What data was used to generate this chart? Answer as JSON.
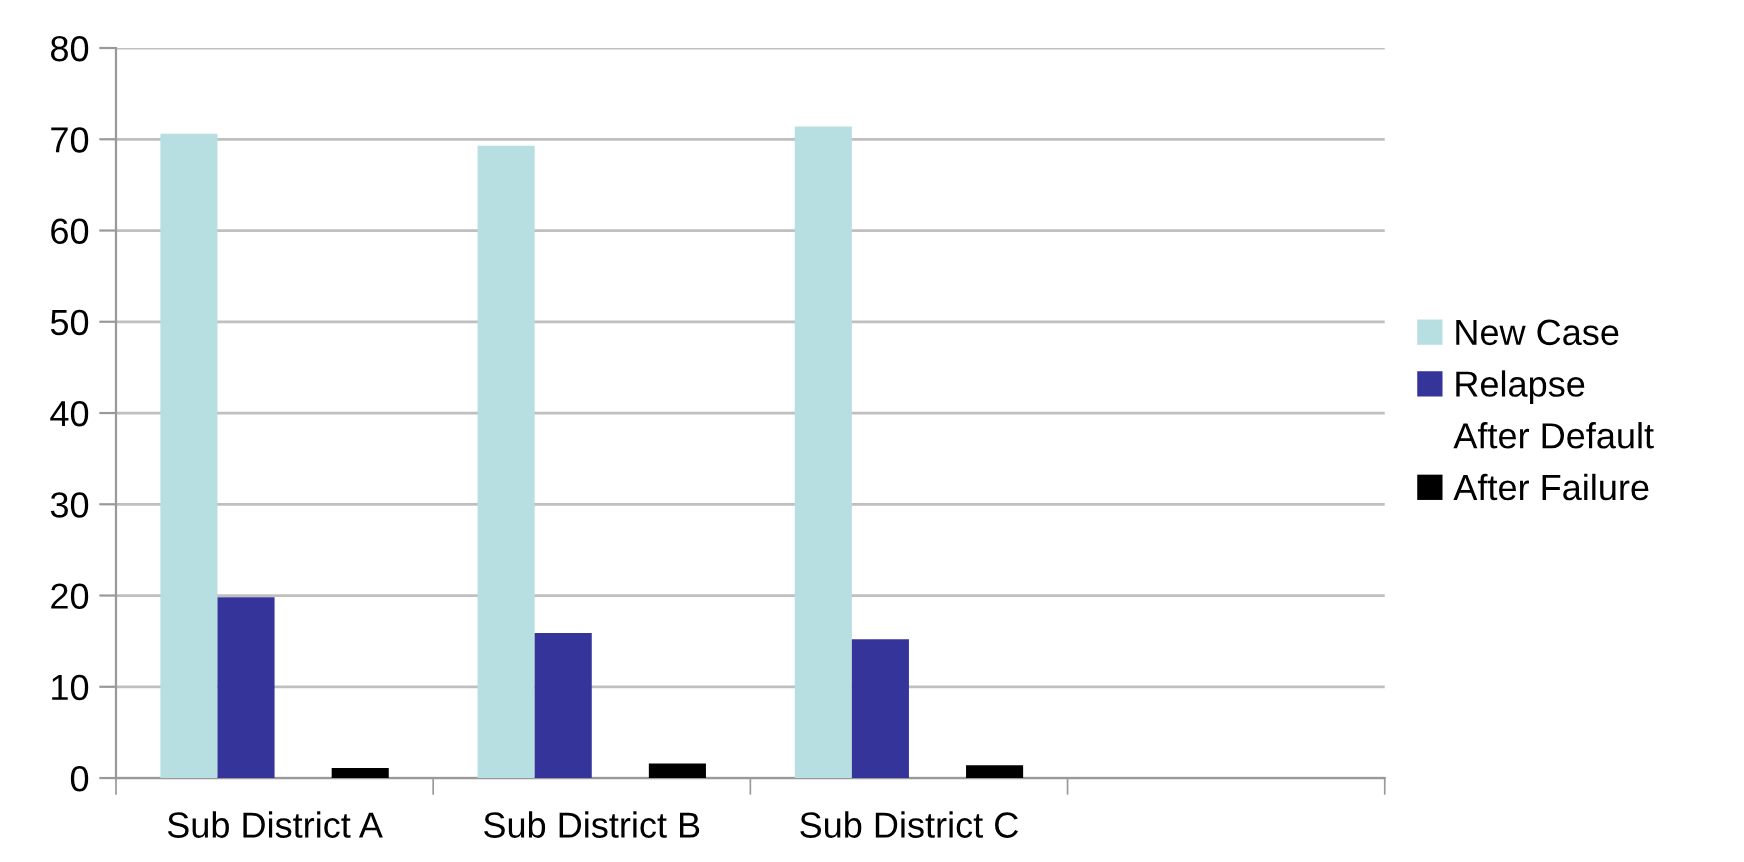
{
  "chart_data": {
    "type": "bar",
    "categories": [
      "Sub District A",
      "Sub District B",
      "Sub District C",
      null
    ],
    "series": [
      {
        "name": "New Case",
        "color": "#b7dfe2",
        "values": [
          70.6,
          69.3,
          71.4,
          null
        ]
      },
      {
        "name": "Relapse",
        "color": "#35349a",
        "values": [
          19.8,
          15.9,
          15.2,
          null
        ]
      },
      {
        "name": "After Default",
        "values": [
          null,
          null,
          null,
          null
        ]
      },
      {
        "name": "After Failure",
        "color": "#000000",
        "values": [
          1.1,
          1.6,
          1.4,
          null
        ]
      }
    ],
    "ylim": [
      0,
      80
    ],
    "yticks": [
      0,
      10,
      20,
      30,
      40,
      50,
      60,
      70,
      80
    ],
    "grid": "y",
    "legend": "right"
  }
}
